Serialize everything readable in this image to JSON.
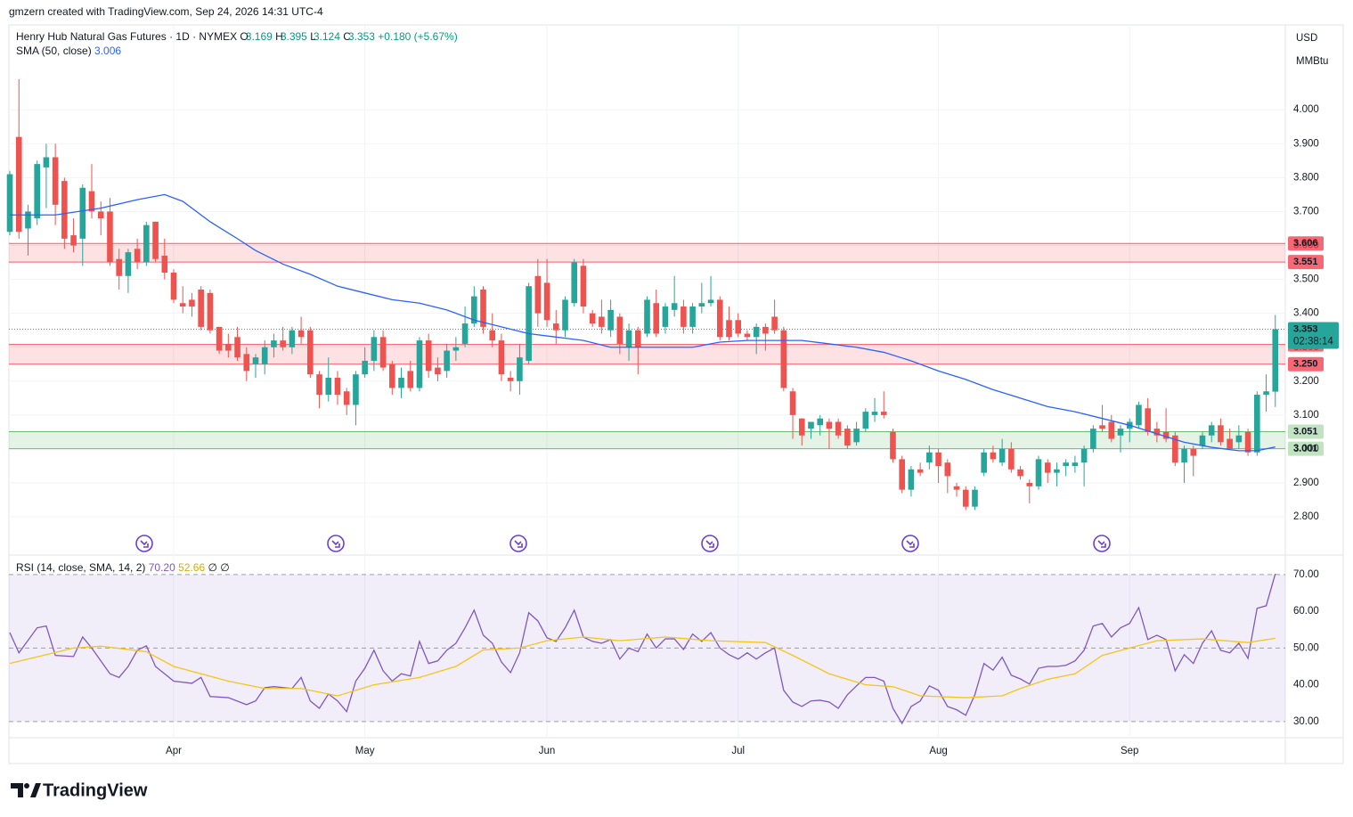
{
  "header": {
    "caption": "gmzern created with TradingView.com, Sep 24, 2026 14:31 UTC-4"
  },
  "footer": {
    "brand": "TradingView"
  },
  "chart_data": [
    {
      "type": "candlestick",
      "title": "Henry Hub Natural Gas Futures · 1D · NYMEX",
      "ohlc_labels": [
        "O",
        "H",
        "L",
        "C"
      ],
      "change": "+0.180 (+5.67%)",
      "currency": "USD",
      "unit": "MMBtu",
      "countdown": "02:38:14",
      "up_color": "#26a69a",
      "down_color": "#ef5350",
      "grid": true,
      "xlim": [
        -0.1,
        140.1
      ],
      "xticks": [
        {
          "value": 18,
          "label": "Apr"
        },
        {
          "value": 39,
          "label": "May"
        },
        {
          "value": 59,
          "label": "Jun"
        },
        {
          "value": 80,
          "label": "Jul"
        },
        {
          "value": 102,
          "label": "Aug"
        },
        {
          "value": 123,
          "label": "Sep"
        }
      ],
      "ylim": [
        2.69,
        4.25
      ],
      "yticks": [
        {
          "value": 2.8,
          "label": "2.800"
        },
        {
          "value": 2.9,
          "label": "2.900"
        },
        {
          "value": 3.0,
          "label": "3.000"
        },
        {
          "value": 3.1,
          "label": "3.100"
        },
        {
          "value": 3.2,
          "label": "3.200"
        },
        {
          "value": 3.3,
          "label": "3.300"
        },
        {
          "value": 3.4,
          "label": "3.400"
        },
        {
          "value": 3.5,
          "label": "3.500"
        },
        {
          "value": 3.6,
          "label": "3.600"
        },
        {
          "value": 3.7,
          "label": "3.700"
        },
        {
          "value": 3.8,
          "label": "3.800"
        },
        {
          "value": 3.9,
          "label": "3.900"
        },
        {
          "value": 4.0,
          "label": "4.000"
        }
      ],
      "open": [
        3.64,
        3.92,
        3.65,
        3.68,
        3.83,
        3.86,
        3.79,
        3.63,
        3.62,
        3.76,
        3.7,
        3.7,
        3.56,
        3.51,
        3.59,
        3.55,
        3.67,
        3.57,
        3.52,
        3.43,
        3.44,
        3.47,
        3.46,
        3.36,
        3.31,
        3.33,
        3.28,
        3.25,
        3.25,
        3.3,
        3.32,
        3.3,
        3.35,
        3.35,
        3.22,
        3.16,
        3.21,
        3.17,
        3.13,
        3.22,
        3.26,
        3.33,
        3.25,
        3.18,
        3.23,
        3.18,
        3.32,
        3.24,
        3.23,
        3.29,
        3.31,
        3.37,
        3.47,
        3.35,
        3.32,
        3.21,
        3.2,
        3.26,
        3.51,
        3.49,
        3.37,
        3.35,
        3.43,
        3.54,
        3.4,
        3.39,
        3.35,
        3.39,
        3.3,
        3.35,
        3.34,
        3.43,
        3.36,
        3.41,
        3.42,
        3.36,
        3.42,
        3.43,
        3.44,
        3.38,
        3.38,
        3.34,
        3.33,
        3.36,
        3.39,
        3.35,
        3.17,
        3.09,
        3.06,
        3.07,
        3.08,
        3.08,
        3.06,
        3.02,
        3.06,
        3.1,
        3.11,
        3.05,
        2.97,
        2.88,
        2.94,
        2.96,
        2.99,
        2.96,
        2.89,
        2.88,
        2.83,
        2.93,
        2.99,
        2.96,
        3.0,
        2.94,
        2.9,
        2.89,
        2.96,
        2.93,
        2.95,
        2.95,
        2.96,
        3.0,
        3.07,
        3.08,
        3.04,
        3.06,
        3.07,
        3.12,
        3.06,
        3.05,
        3.04,
        2.96,
        3.0,
        3.01,
        3.04,
        3.07,
        3.03,
        3.02,
        3.05,
        2.99,
        3.16,
        3.169
      ],
      "high": [
        3.82,
        4.09,
        3.72,
        3.85,
        3.9,
        3.9,
        3.8,
        3.68,
        3.78,
        3.84,
        3.73,
        3.74,
        3.59,
        3.59,
        3.62,
        3.67,
        3.67,
        3.62,
        3.53,
        3.48,
        3.46,
        3.48,
        3.47,
        3.36,
        3.34,
        3.36,
        3.3,
        3.28,
        3.32,
        3.34,
        3.36,
        3.36,
        3.39,
        3.36,
        3.23,
        3.27,
        3.23,
        3.18,
        3.23,
        3.3,
        3.35,
        3.35,
        3.26,
        3.24,
        3.26,
        3.33,
        3.34,
        3.27,
        3.31,
        3.33,
        3.42,
        3.48,
        3.48,
        3.4,
        3.34,
        3.23,
        3.31,
        3.49,
        3.56,
        3.56,
        3.41,
        3.45,
        3.56,
        3.56,
        3.41,
        3.44,
        3.44,
        3.4,
        3.37,
        3.36,
        3.45,
        3.47,
        3.43,
        3.51,
        3.44,
        3.43,
        3.49,
        3.51,
        3.45,
        3.42,
        3.4,
        3.35,
        3.37,
        3.37,
        3.44,
        3.36,
        3.18,
        3.09,
        3.08,
        3.1,
        3.09,
        3.09,
        3.07,
        3.08,
        3.12,
        3.15,
        3.17,
        3.06,
        2.98,
        2.95,
        2.96,
        3.01,
        3.0,
        2.97,
        2.9,
        2.89,
        2.89,
        3.0,
        3.01,
        3.03,
        3.02,
        2.95,
        2.91,
        2.98,
        2.97,
        2.96,
        2.97,
        2.98,
        3.01,
        3.07,
        3.13,
        3.1,
        3.07,
        3.09,
        3.14,
        3.15,
        3.08,
        3.12,
        3.05,
        3.01,
        3.01,
        3.05,
        3.08,
        3.09,
        3.06,
        3.07,
        3.06,
        3.17,
        3.22,
        3.395
      ],
      "low": [
        3.63,
        3.62,
        3.57,
        3.66,
        3.71,
        3.66,
        3.59,
        3.58,
        3.54,
        3.68,
        3.63,
        3.54,
        3.47,
        3.46,
        3.53,
        3.54,
        3.55,
        3.5,
        3.43,
        3.4,
        3.39,
        3.35,
        3.34,
        3.28,
        3.27,
        3.26,
        3.2,
        3.21,
        3.22,
        3.27,
        3.29,
        3.28,
        3.31,
        3.21,
        3.12,
        3.14,
        3.13,
        3.1,
        3.07,
        3.21,
        3.23,
        3.23,
        3.16,
        3.15,
        3.17,
        3.17,
        3.21,
        3.2,
        3.21,
        3.26,
        3.3,
        3.36,
        3.34,
        3.3,
        3.2,
        3.17,
        3.16,
        3.25,
        3.36,
        3.36,
        3.31,
        3.33,
        3.42,
        3.4,
        3.36,
        3.34,
        3.33,
        3.28,
        3.26,
        3.22,
        3.33,
        3.33,
        3.34,
        3.39,
        3.34,
        3.34,
        3.4,
        3.42,
        3.32,
        3.32,
        3.33,
        3.32,
        3.28,
        3.29,
        3.34,
        3.17,
        3.03,
        3.01,
        3.03,
        3.04,
        3.0,
        3.03,
        3.0,
        3.01,
        3.05,
        3.08,
        3.09,
        2.96,
        2.87,
        2.86,
        2.92,
        2.94,
        2.9,
        2.87,
        2.86,
        2.82,
        2.82,
        2.92,
        2.96,
        2.95,
        2.93,
        2.91,
        2.84,
        2.88,
        2.9,
        2.89,
        2.92,
        2.93,
        2.89,
        2.99,
        3.05,
        3.02,
        2.99,
        3.02,
        3.06,
        3.04,
        3.02,
        3.02,
        2.95,
        2.9,
        2.92,
        3.0,
        3.02,
        3.01,
        3.0,
        3.0,
        2.98,
        2.98,
        3.11,
        3.124
      ],
      "close": [
        3.81,
        3.64,
        3.7,
        3.84,
        3.86,
        3.72,
        3.62,
        3.6,
        3.77,
        3.7,
        3.68,
        3.55,
        3.51,
        3.58,
        3.55,
        3.66,
        3.56,
        3.52,
        3.44,
        3.42,
        3.42,
        3.36,
        3.35,
        3.29,
        3.29,
        3.27,
        3.23,
        3.27,
        3.3,
        3.32,
        3.3,
        3.35,
        3.33,
        3.22,
        3.16,
        3.21,
        3.16,
        3.13,
        3.22,
        3.26,
        3.33,
        3.24,
        3.18,
        3.21,
        3.18,
        3.32,
        3.23,
        3.22,
        3.29,
        3.3,
        3.37,
        3.45,
        3.36,
        3.32,
        3.22,
        3.2,
        3.27,
        3.48,
        3.4,
        3.38,
        3.35,
        3.44,
        3.55,
        3.42,
        3.37,
        3.36,
        3.41,
        3.31,
        3.35,
        3.3,
        3.44,
        3.34,
        3.42,
        3.43,
        3.36,
        3.42,
        3.43,
        3.44,
        3.33,
        3.33,
        3.34,
        3.33,
        3.36,
        3.34,
        3.35,
        3.18,
        3.1,
        3.04,
        3.08,
        3.09,
        3.06,
        3.04,
        3.01,
        3.06,
        3.11,
        3.11,
        3.1,
        2.97,
        2.88,
        2.94,
        2.93,
        2.99,
        2.95,
        2.92,
        2.88,
        2.83,
        2.88,
        2.99,
        2.97,
        3.0,
        2.94,
        2.92,
        2.89,
        2.97,
        2.93,
        2.94,
        2.96,
        2.96,
        3.0,
        3.06,
        3.06,
        3.03,
        3.06,
        3.08,
        3.13,
        3.05,
        3.04,
        3.03,
        2.96,
        3.0,
        2.98,
        3.04,
        3.07,
        3.02,
        3.0,
        3.04,
        2.99,
        3.16,
        3.17,
        3.353
      ],
      "series": [
        {
          "name": "SMA (50, close)",
          "color": "#2962ff",
          "x": [
            0,
            5,
            10,
            14,
            17,
            19,
            22,
            25,
            27,
            30,
            33,
            36,
            39,
            42,
            45,
            48,
            51,
            54,
            57,
            60,
            63,
            66,
            69,
            72,
            75,
            78,
            81,
            84,
            87,
            90,
            93,
            96,
            99,
            102,
            105,
            108,
            111,
            114,
            117,
            120,
            123,
            126,
            129,
            132,
            135,
            137,
            139
          ],
          "values": [
            3.69,
            3.69,
            3.71,
            3.735,
            3.75,
            3.73,
            3.67,
            3.62,
            3.585,
            3.545,
            3.515,
            3.48,
            3.46,
            3.44,
            3.43,
            3.41,
            3.38,
            3.36,
            3.34,
            3.33,
            3.32,
            3.3,
            3.3,
            3.3,
            3.3,
            3.315,
            3.32,
            3.32,
            3.32,
            3.31,
            3.3,
            3.285,
            3.26,
            3.23,
            3.205,
            3.175,
            3.15,
            3.125,
            3.11,
            3.09,
            3.07,
            3.045,
            3.02,
            3.005,
            2.995,
            2.995,
            3.006
          ]
        }
      ],
      "zones": [
        {
          "low": 3.551,
          "high": 3.606,
          "color": "#f23645",
          "text_color": "#ffffff"
        },
        {
          "low": {
            "value": 3.25,
            "label": "3.250"
          },
          "high": 3.308,
          "color": "#f23645",
          "text_color": "#ffffff"
        },
        {
          "low": 3.001,
          "high": 3.051,
          "color": "#4caf50",
          "text_color": "#131722"
        }
      ]
    },
    {
      "type": "line",
      "title": "RSI (14, close, SMA, 14, 2)",
      "value_label": "70.20",
      "extra": "∅ ∅",
      "ylim": [
        25.6,
        75.3
      ],
      "yticks": [
        {
          "value": 30,
          "label": "30.00"
        },
        {
          "value": 40,
          "label": "40.00"
        },
        {
          "value": 50,
          "label": "50.00"
        },
        {
          "value": 60,
          "label": "60.00"
        },
        {
          "value": 70,
          "label": "70.00"
        }
      ],
      "band": [
        30,
        70
      ],
      "band_color": "#7e57c2",
      "dashed_levels": [
        30,
        50,
        70
      ],
      "series": [
        {
          "color": "#7e57c2",
          "x": [
            0,
            1,
            3,
            4,
            5,
            7,
            8,
            9,
            11,
            12,
            13,
            14,
            15,
            16,
            18,
            20,
            21,
            22,
            24,
            26,
            27,
            28,
            29,
            31,
            32,
            33,
            34,
            35,
            36,
            37,
            38,
            39,
            40,
            41,
            42,
            43,
            44,
            45,
            46,
            47,
            48,
            49,
            50,
            51,
            52,
            53,
            54,
            55,
            56,
            57,
            58,
            59,
            60,
            61,
            62,
            63,
            64,
            65,
            66,
            67,
            68,
            69,
            70,
            71,
            72,
            73,
            74,
            75,
            76,
            77,
            78,
            79,
            80,
            81,
            82,
            83,
            84,
            85,
            86,
            87,
            88,
            89,
            90,
            91,
            92,
            93,
            94,
            95,
            96,
            97,
            98,
            99,
            100,
            101,
            102,
            103,
            104,
            105,
            106,
            107,
            108,
            109,
            110,
            111,
            112,
            113,
            114,
            115,
            116,
            117,
            118,
            119,
            120,
            121,
            122,
            123,
            124,
            125,
            126,
            127,
            128,
            129,
            130,
            131,
            132,
            133,
            134,
            135,
            136,
            137,
            138,
            139
          ],
          "values": [
            54.2,
            48.7,
            55.5,
            56,
            48,
            47.7,
            53,
            50,
            43,
            42,
            45,
            49.4,
            50.6,
            45,
            41,
            40.4,
            42,
            36.8,
            36.5,
            34.6,
            35.6,
            39.2,
            39.5,
            39,
            42,
            35.6,
            33.6,
            37.5,
            35.6,
            32.7,
            41,
            44.5,
            49.4,
            43.8,
            41,
            43,
            42.4,
            51.8,
            45.8,
            46.5,
            49.4,
            51.3,
            55.5,
            60.3,
            53.5,
            51.3,
            46.2,
            43.3,
            48.7,
            59.6,
            57.4,
            52.8,
            51.8,
            55.5,
            60.3,
            53,
            51.8,
            51.3,
            52.3,
            47,
            50,
            49,
            53.8,
            50,
            52.5,
            52.5,
            49.6,
            53.8,
            51.8,
            54.2,
            50,
            48.2,
            47,
            48.7,
            47,
            48.7,
            50,
            38.5,
            35.3,
            34.1,
            35.6,
            35.8,
            35.3,
            33.6,
            37.3,
            39.7,
            42,
            42,
            41,
            33.6,
            29.5,
            34.1,
            35.6,
            39.7,
            38.5,
            34.1,
            33.2,
            31.7,
            37.3,
            45.8,
            44,
            47.5,
            42.6,
            41.6,
            40.2,
            44.5,
            45,
            45,
            45.3,
            46.5,
            49.4,
            56,
            56.7,
            53,
            55.5,
            56.7,
            61,
            52.3,
            53.5,
            52.3,
            43.8,
            48.2,
            45.8,
            51.3,
            54.7,
            49.4,
            48.7,
            51.3,
            47.2,
            60.8,
            61.5,
            70.2
          ]
        },
        {
          "color": "#f5c518",
          "x": [
            0,
            7,
            10,
            15,
            18,
            24,
            28,
            32,
            36,
            40,
            45,
            49,
            52,
            56,
            59,
            63,
            67,
            72,
            77,
            83,
            86,
            90,
            94,
            97,
            100,
            105,
            109,
            111,
            114,
            117,
            120,
            123,
            126,
            131,
            136,
            139
          ],
          "values": [
            45.8,
            50,
            50.5,
            49,
            45,
            41,
            39,
            39,
            37,
            40,
            42,
            45,
            49.5,
            50,
            52,
            53,
            52,
            53,
            52,
            51.5,
            48,
            43,
            40,
            39.5,
            37,
            36.5,
            37,
            39,
            41.5,
            43,
            48,
            50,
            52,
            52.5,
            51.5,
            52.66
          ]
        }
      ]
    }
  ]
}
